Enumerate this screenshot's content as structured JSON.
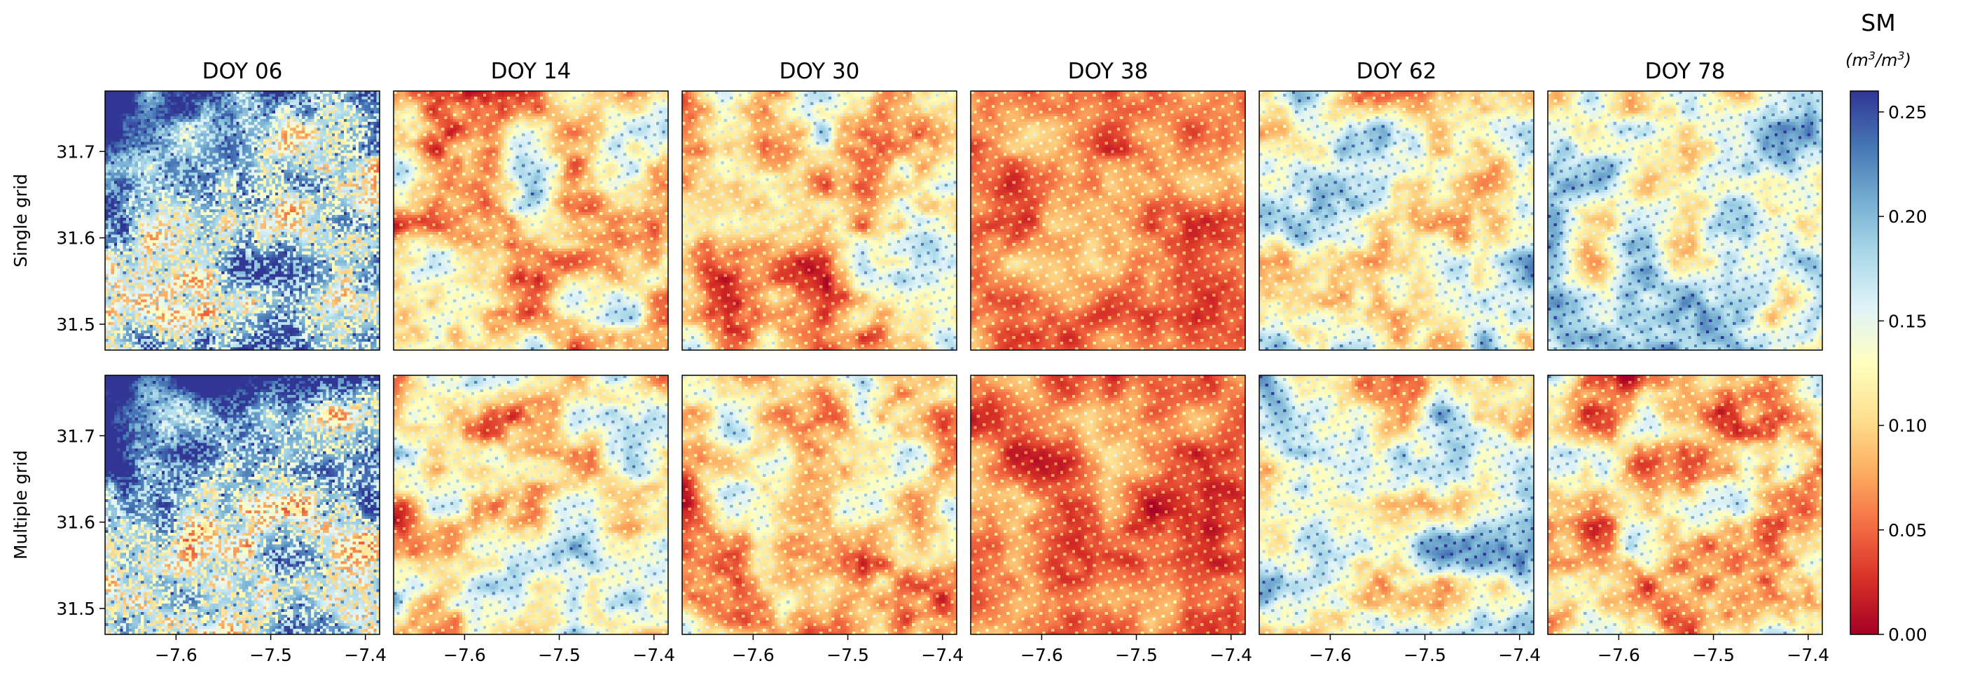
{
  "chart_data": {
    "type": "heatmap",
    "columns": [
      "DOY 06",
      "DOY 14",
      "DOY 30",
      "DOY 38",
      "DOY 62",
      "DOY 78"
    ],
    "rows": [
      "Single grid",
      "Multiple grid"
    ],
    "x_ticks": [
      -7.6,
      -7.5,
      -7.4
    ],
    "x_tick_labels": [
      "−7.6",
      "−7.5",
      "−7.4"
    ],
    "y_ticks": [
      31.5,
      31.6,
      31.7
    ],
    "y_tick_labels": [
      "31.5",
      "31.6",
      "31.7"
    ],
    "xlim": [
      -7.675,
      -7.385
    ],
    "ylim": [
      31.47,
      31.77
    ],
    "colorbar": {
      "title": "SM",
      "unit_base": "(m",
      "unit_sup1": "3",
      "unit_mid": "/m",
      "unit_sup2": "3",
      "unit_end": ")",
      "range": [
        0.0,
        0.26
      ],
      "ticks": [
        0.0,
        0.05,
        0.1,
        0.15,
        0.2,
        0.25
      ],
      "tick_labels": [
        "0.00",
        "0.05",
        "0.10",
        "0.15",
        "0.20",
        "0.25"
      ],
      "colormap": "RdYlBu"
    },
    "panels": [
      {
        "row": "Single grid",
        "column": "DOY 06",
        "mean_sm": 0.19,
        "wet_region": "northwest"
      },
      {
        "row": "Single grid",
        "column": "DOY 14",
        "mean_sm": 0.11
      },
      {
        "row": "Single grid",
        "column": "DOY 30",
        "mean_sm": 0.1
      },
      {
        "row": "Single grid",
        "column": "DOY 38",
        "mean_sm": 0.06
      },
      {
        "row": "Single grid",
        "column": "DOY 62",
        "mean_sm": 0.14
      },
      {
        "row": "Single grid",
        "column": "DOY 78",
        "mean_sm": 0.15
      },
      {
        "row": "Multiple grid",
        "column": "DOY 06",
        "mean_sm": 0.19,
        "wet_region": "northwest"
      },
      {
        "row": "Multiple grid",
        "column": "DOY 14",
        "mean_sm": 0.11
      },
      {
        "row": "Multiple grid",
        "column": "DOY 30",
        "mean_sm": 0.1
      },
      {
        "row": "Multiple grid",
        "column": "DOY 38",
        "mean_sm": 0.055
      },
      {
        "row": "Multiple grid",
        "column": "DOY 62",
        "mean_sm": 0.14
      },
      {
        "row": "Multiple grid",
        "column": "DOY 78",
        "mean_sm": 0.1
      }
    ]
  }
}
